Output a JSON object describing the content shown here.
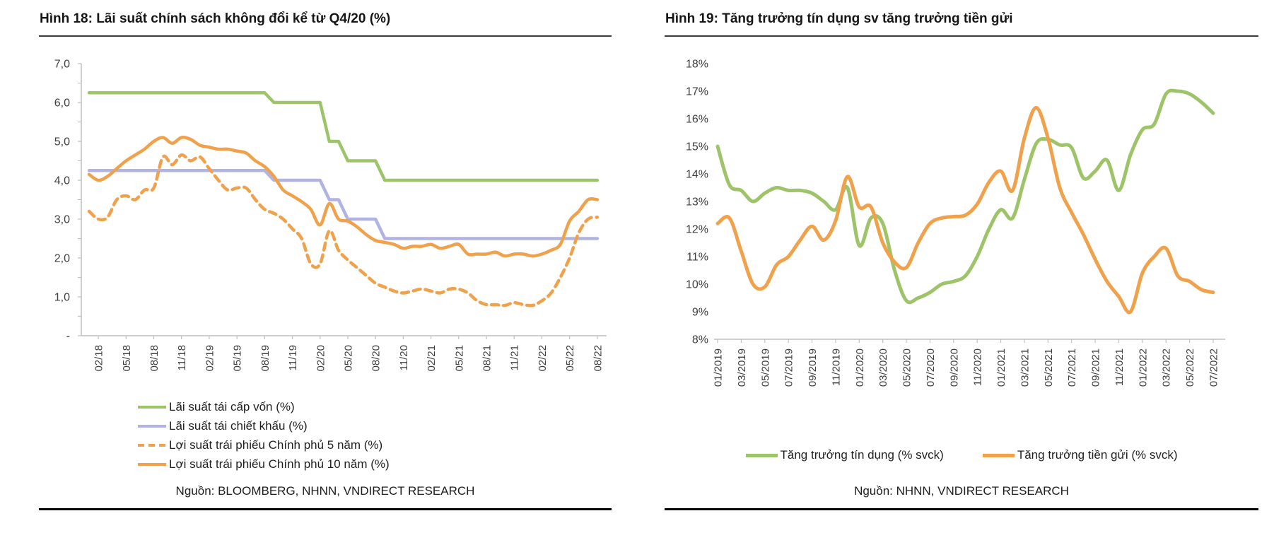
{
  "colors": {
    "green": "#9ec46a",
    "lavender": "#b1b4e2",
    "orange": "#f0a14c",
    "axis": "#bfbfbf"
  },
  "panels": [
    {
      "title": "Hình 18: Lãi suất chính sách không đổi kể từ Q4/20 (%)",
      "source": "Nguồn: BLOOMBERG, NHNN, VNDIRECT RESEARCH",
      "legend": [
        {
          "label": "Lãi suất tái cấp vốn (%)",
          "color": "#9ec46a",
          "dash": false
        },
        {
          "label": "Lãi suất tái chiết khấu (%)",
          "color": "#b1b4e2",
          "dash": false
        },
        {
          "label": "Lợi suất trái phiếu Chính phủ 5 năm (%)",
          "color": "#f0a14c",
          "dash": true
        },
        {
          "label": "Lợi suất trái phiếu Chính phủ 10 năm (%)",
          "color": "#f0a14c",
          "dash": false
        }
      ]
    },
    {
      "title": "Hình 19: Tăng trưởng tín dụng sv tăng trưởng tiền gửi",
      "source": "Nguồn: NHNN, VNDIRECT RESEARCH",
      "legend": [
        {
          "label": "Tăng trưởng tín dụng (% svck)",
          "color": "#9ec46a",
          "dash": false
        },
        {
          "label": "Tăng trưởng tiền gửi (% svck)",
          "color": "#f0a14c",
          "dash": false
        }
      ]
    }
  ],
  "chart_data": [
    {
      "type": "line",
      "title": "Hình 18: Lãi suất chính sách không đổi kể từ Q4/20 (%)",
      "xlabel": "",
      "ylabel": "",
      "ylim": [
        0,
        7
      ],
      "grid": false,
      "legend_position": "bottom",
      "x": [
        "01/18",
        "02/18",
        "03/18",
        "04/18",
        "05/18",
        "06/18",
        "07/18",
        "08/18",
        "09/18",
        "10/18",
        "11/18",
        "12/18",
        "01/19",
        "02/19",
        "03/19",
        "04/19",
        "05/19",
        "06/19",
        "07/19",
        "08/19",
        "09/19",
        "10/19",
        "11/19",
        "12/19",
        "01/20",
        "02/20",
        "03/20",
        "04/20",
        "05/20",
        "06/20",
        "07/20",
        "08/20",
        "09/20",
        "10/20",
        "11/20",
        "12/20",
        "01/21",
        "02/21",
        "03/21",
        "04/21",
        "05/21",
        "06/21",
        "07/21",
        "08/21",
        "09/21",
        "10/21",
        "11/21",
        "12/21",
        "01/22",
        "02/22",
        "03/22",
        "04/22",
        "05/22",
        "06/22",
        "07/22",
        "08/22"
      ],
      "x_tick_labels": [
        "02/18",
        "05/18",
        "08/18",
        "11/18",
        "02/19",
        "05/19",
        "08/19",
        "11/19",
        "02/20",
        "05/20",
        "08/20",
        "11/20",
        "02/21",
        "05/21",
        "08/21",
        "11/21",
        "02/22",
        "05/22",
        "08/22"
      ],
      "y_ticks": [
        {
          "label": "7,0",
          "value": 7
        },
        {
          "label": "6,0",
          "value": 6
        },
        {
          "label": "5,0",
          "value": 5
        },
        {
          "label": "4,0",
          "value": 4
        },
        {
          "label": "3,0",
          "value": 3
        },
        {
          "label": "2,0",
          "value": 2
        },
        {
          "label": "1,0",
          "value": 1
        },
        {
          "label": "-",
          "value": 0
        }
      ],
      "series": [
        {
          "name": "Lãi suất tái cấp vốn (%)",
          "color": "#9ec46a",
          "style": "solid",
          "smooth": false,
          "values": [
            6.25,
            6.25,
            6.25,
            6.25,
            6.25,
            6.25,
            6.25,
            6.25,
            6.25,
            6.25,
            6.25,
            6.25,
            6.25,
            6.25,
            6.25,
            6.25,
            6.25,
            6.25,
            6.25,
            6.25,
            6.0,
            6.0,
            6.0,
            6.0,
            6.0,
            6.0,
            5.0,
            5.0,
            4.5,
            4.5,
            4.5,
            4.5,
            4.0,
            4.0,
            4.0,
            4.0,
            4.0,
            4.0,
            4.0,
            4.0,
            4.0,
            4.0,
            4.0,
            4.0,
            4.0,
            4.0,
            4.0,
            4.0,
            4.0,
            4.0,
            4.0,
            4.0,
            4.0,
            4.0,
            4.0,
            4.0
          ]
        },
        {
          "name": "Lãi suất tái chiết khấu (%)",
          "color": "#b1b4e2",
          "style": "solid",
          "smooth": false,
          "values": [
            4.25,
            4.25,
            4.25,
            4.25,
            4.25,
            4.25,
            4.25,
            4.25,
            4.25,
            4.25,
            4.25,
            4.25,
            4.25,
            4.25,
            4.25,
            4.25,
            4.25,
            4.25,
            4.25,
            4.25,
            4.0,
            4.0,
            4.0,
            4.0,
            4.0,
            4.0,
            3.5,
            3.5,
            3.0,
            3.0,
            3.0,
            3.0,
            2.5,
            2.5,
            2.5,
            2.5,
            2.5,
            2.5,
            2.5,
            2.5,
            2.5,
            2.5,
            2.5,
            2.5,
            2.5,
            2.5,
            2.5,
            2.5,
            2.5,
            2.5,
            2.5,
            2.5,
            2.5,
            2.5,
            2.5,
            2.5
          ]
        },
        {
          "name": "Lợi suất trái phiếu Chính phủ 5 năm (%)",
          "color": "#f0a14c",
          "style": "dashed",
          "smooth": true,
          "values": [
            3.2,
            3.0,
            3.05,
            3.5,
            3.6,
            3.5,
            3.75,
            3.8,
            4.6,
            4.4,
            4.65,
            4.5,
            4.6,
            4.3,
            4.0,
            3.75,
            3.8,
            3.8,
            3.5,
            3.25,
            3.15,
            3.0,
            2.75,
            2.5,
            1.85,
            1.85,
            2.7,
            2.2,
            1.95,
            1.75,
            1.55,
            1.35,
            1.25,
            1.15,
            1.1,
            1.15,
            1.2,
            1.15,
            1.1,
            1.2,
            1.2,
            1.1,
            0.9,
            0.8,
            0.8,
            0.78,
            0.85,
            0.8,
            0.78,
            0.9,
            1.1,
            1.5,
            2.0,
            2.65,
            3.0,
            3.05
          ]
        },
        {
          "name": "Lợi suất trái phiếu Chính phủ 10 năm (%)",
          "color": "#f0a14c",
          "style": "solid",
          "smooth": true,
          "values": [
            4.15,
            4.0,
            4.1,
            4.3,
            4.5,
            4.65,
            4.8,
            5.0,
            5.1,
            4.95,
            5.1,
            5.05,
            4.9,
            4.85,
            4.8,
            4.8,
            4.75,
            4.7,
            4.5,
            4.35,
            4.1,
            3.75,
            3.6,
            3.45,
            3.25,
            2.85,
            3.4,
            3.0,
            2.95,
            2.8,
            2.6,
            2.45,
            2.4,
            2.35,
            2.25,
            2.3,
            2.3,
            2.35,
            2.25,
            2.3,
            2.35,
            2.1,
            2.1,
            2.1,
            2.15,
            2.05,
            2.1,
            2.1,
            2.05,
            2.1,
            2.2,
            2.35,
            2.95,
            3.2,
            3.5,
            3.5
          ]
        }
      ]
    },
    {
      "type": "line",
      "title": "Hình 19: Tăng trưởng tín dụng sv tăng trưởng tiền gửi",
      "xlabel": "",
      "ylabel": "",
      "ylim": [
        8,
        18
      ],
      "grid": false,
      "legend_position": "bottom",
      "x": [
        "01/2019",
        "02/2019",
        "03/2019",
        "04/2019",
        "05/2019",
        "06/2019",
        "07/2019",
        "08/2019",
        "09/2019",
        "10/2019",
        "11/2019",
        "12/2019",
        "01/2020",
        "02/2020",
        "03/2020",
        "04/2020",
        "05/2020",
        "06/2020",
        "07/2020",
        "08/2020",
        "09/2020",
        "10/2020",
        "11/2020",
        "12/2020",
        "01/2021",
        "02/2021",
        "03/2021",
        "04/2021",
        "05/2021",
        "06/2021",
        "07/2021",
        "08/2021",
        "09/2021",
        "10/2021",
        "11/2021",
        "12/2021",
        "01/2022",
        "02/2022",
        "03/2022",
        "04/2022",
        "05/2022",
        "06/2022",
        "07/2022"
      ],
      "x_tick_labels": [
        "01/2019",
        "03/2019",
        "05/2019",
        "07/2019",
        "09/2019",
        "11/2019",
        "01/2020",
        "03/2020",
        "05/2020",
        "07/2020",
        "09/2020",
        "11/2020",
        "01/2021",
        "03/2021",
        "05/2021",
        "07/2021",
        "09/2021",
        "11/2021",
        "01/2022",
        "03/2022",
        "05/2022",
        "07/2022"
      ],
      "y_ticks": [
        {
          "label": "18%",
          "value": 18
        },
        {
          "label": "17%",
          "value": 17
        },
        {
          "label": "16%",
          "value": 16
        },
        {
          "label": "15%",
          "value": 15
        },
        {
          "label": "14%",
          "value": 14
        },
        {
          "label": "13%",
          "value": 13
        },
        {
          "label": "12%",
          "value": 12
        },
        {
          "label": "11%",
          "value": 11
        },
        {
          "label": "10%",
          "value": 10
        },
        {
          "label": "9%",
          "value": 9
        },
        {
          "label": "8%",
          "value": 8
        }
      ],
      "series": [
        {
          "name": "Tăng trưởng tín dụng (% svck)",
          "color": "#9ec46a",
          "style": "solid",
          "smooth": true,
          "values": [
            15.0,
            13.6,
            13.4,
            13.0,
            13.3,
            13.5,
            13.4,
            13.4,
            13.3,
            13.0,
            12.7,
            13.5,
            11.4,
            12.4,
            12.2,
            10.5,
            9.4,
            9.5,
            9.7,
            10.0,
            10.1,
            10.3,
            11.0,
            12.0,
            12.7,
            12.4,
            13.8,
            15.1,
            15.25,
            15.05,
            14.95,
            13.85,
            14.1,
            14.5,
            13.4,
            14.7,
            15.6,
            15.8,
            16.9,
            17.0,
            16.9,
            16.6,
            16.2
          ]
        },
        {
          "name": "Tăng trưởng tiền gửi (% svck)",
          "color": "#f0a14c",
          "style": "solid",
          "smooth": true,
          "values": [
            12.2,
            12.4,
            11.2,
            10.0,
            9.9,
            10.7,
            11.0,
            11.6,
            12.1,
            11.6,
            12.3,
            13.9,
            12.8,
            12.8,
            11.5,
            10.8,
            10.6,
            11.5,
            12.2,
            12.4,
            12.45,
            12.5,
            12.9,
            13.7,
            14.1,
            13.4,
            15.3,
            16.4,
            15.3,
            13.5,
            12.6,
            11.8,
            10.9,
            10.1,
            9.55,
            9.0,
            10.4,
            11.0,
            11.3,
            10.3,
            10.1,
            9.8,
            9.7
          ]
        }
      ]
    }
  ]
}
